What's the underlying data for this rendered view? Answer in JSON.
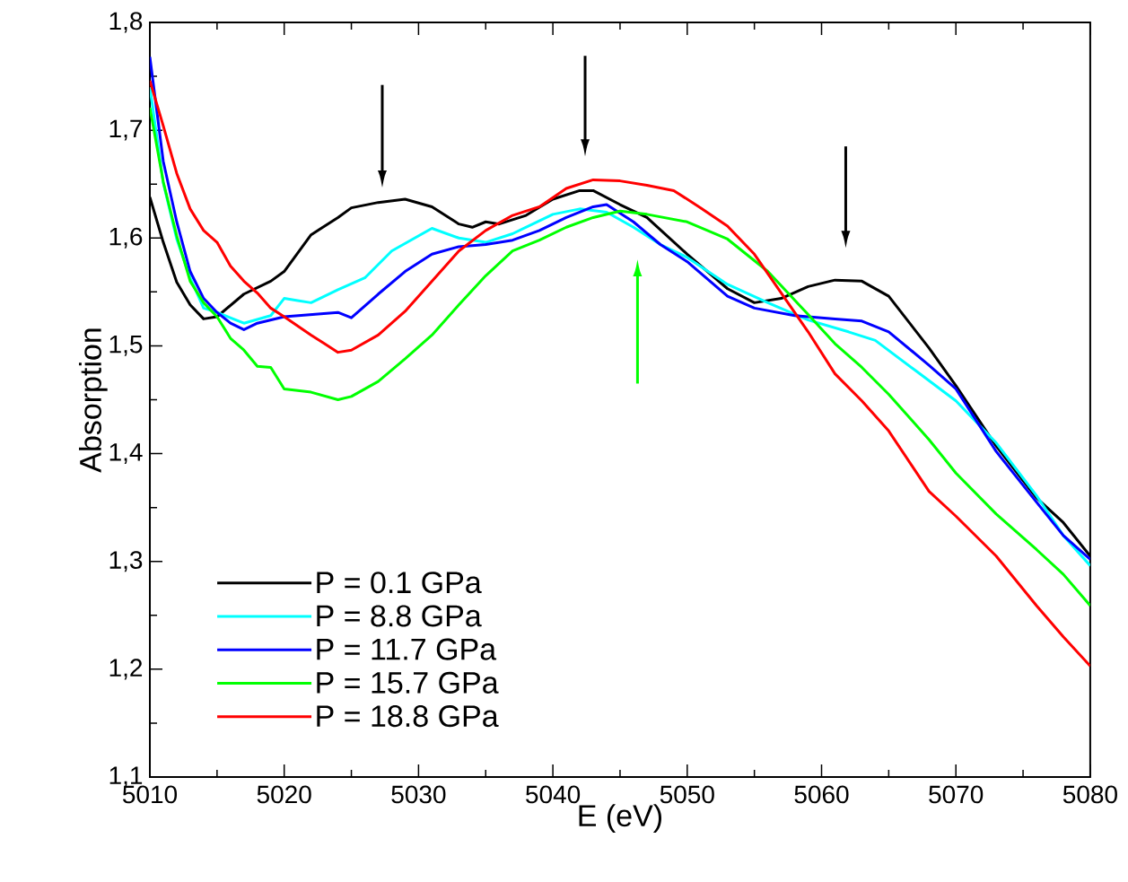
{
  "chart_data": {
    "type": "line",
    "xlabel": "E (eV)",
    "ylabel": "Absorption",
    "xlim": [
      5010,
      5080
    ],
    "xticks": [
      5010,
      5020,
      5030,
      5040,
      5050,
      5060,
      5070,
      5080
    ],
    "ylim": [
      1.1,
      1.8
    ],
    "yticks": [
      {
        "value": 1.1,
        "label": "1,1"
      },
      {
        "value": 1.2,
        "label": "1,2"
      },
      {
        "value": 1.3,
        "label": "1,3"
      },
      {
        "value": 1.4,
        "label": "1,4"
      },
      {
        "value": 1.5,
        "label": "1,5"
      },
      {
        "value": 1.6,
        "label": "1,6"
      },
      {
        "value": 1.7,
        "label": "1,7"
      },
      {
        "value": 1.8,
        "label": "1,8"
      }
    ],
    "grid": false,
    "legend": "bottom left",
    "marker": "none",
    "line_style": "solid",
    "series": [
      {
        "name": "P = 0.1 GPa",
        "color": "#000000",
        "x": [
          5010,
          5011,
          5012,
          5013,
          5014,
          5015,
          5017,
          5019,
          5020,
          5022,
          5024,
          5025,
          5027,
          5029,
          5031,
          5033,
          5034,
          5035,
          5036,
          5038,
          5040,
          5042,
          5043,
          5045,
          5047,
          5050,
          5053,
          5055,
          5057,
          5059,
          5061,
          5063,
          5065,
          5068,
          5070,
          5073,
          5076,
          5078,
          5080
        ],
        "values": [
          1.638,
          1.596,
          1.559,
          1.538,
          1.525,
          1.527,
          1.548,
          1.56,
          1.569,
          1.603,
          1.619,
          1.628,
          1.633,
          1.636,
          1.629,
          1.613,
          1.61,
          1.615,
          1.613,
          1.621,
          1.636,
          1.644,
          1.644,
          1.631,
          1.619,
          1.585,
          1.553,
          1.54,
          1.544,
          1.555,
          1.561,
          1.56,
          1.546,
          1.498,
          1.463,
          1.407,
          1.359,
          1.336,
          1.305
        ]
      },
      {
        "name": "P = 8.8 GPa",
        "color": "#00ffff",
        "x": [
          5010,
          5011,
          5012,
          5013,
          5014,
          5015,
          5017,
          5019,
          5020,
          5021,
          5022,
          5024,
          5026,
          5028,
          5031,
          5033,
          5035,
          5037,
          5040,
          5042,
          5044,
          5046,
          5048,
          5050,
          5053,
          5056,
          5059,
          5062,
          5064,
          5067,
          5070,
          5073,
          5076,
          5078,
          5080
        ],
        "values": [
          1.74,
          1.651,
          1.599,
          1.563,
          1.535,
          1.531,
          1.521,
          1.528,
          1.544,
          1.542,
          1.54,
          1.552,
          1.563,
          1.588,
          1.609,
          1.6,
          1.596,
          1.604,
          1.622,
          1.627,
          1.624,
          1.61,
          1.594,
          1.582,
          1.557,
          1.54,
          1.524,
          1.513,
          1.505,
          1.477,
          1.449,
          1.41,
          1.361,
          1.324,
          1.296
        ]
      },
      {
        "name": "P = 11.7 GPa",
        "color": "#0000ff",
        "x": [
          5010,
          5011,
          5012,
          5013,
          5014,
          5015,
          5016,
          5017,
          5018,
          5020,
          5022,
          5024,
          5025,
          5027,
          5029,
          5031,
          5033,
          5035,
          5037,
          5039,
          5041,
          5043,
          5044,
          5046,
          5048,
          5050,
          5053,
          5055,
          5058,
          5061,
          5063,
          5065,
          5068,
          5070,
          5073,
          5076,
          5078,
          5080
        ],
        "values": [
          1.768,
          1.671,
          1.615,
          1.569,
          1.544,
          1.531,
          1.521,
          1.515,
          1.521,
          1.527,
          1.529,
          1.531,
          1.526,
          1.548,
          1.569,
          1.585,
          1.592,
          1.594,
          1.598,
          1.607,
          1.619,
          1.629,
          1.631,
          1.615,
          1.594,
          1.578,
          1.546,
          1.535,
          1.528,
          1.525,
          1.523,
          1.513,
          1.482,
          1.46,
          1.402,
          1.355,
          1.324,
          1.302
        ]
      },
      {
        "name": "P = 15.7 GPa",
        "color": "#00ff00",
        "x": [
          5010,
          5011,
          5012,
          5013,
          5014,
          5015,
          5016,
          5017,
          5018,
          5019,
          5020,
          5022,
          5024,
          5025,
          5027,
          5029,
          5031,
          5033,
          5035,
          5037,
          5039,
          5041,
          5043,
          5045,
          5047,
          5050,
          5053,
          5056,
          5059,
          5061,
          5063,
          5065,
          5068,
          5070,
          5073,
          5076,
          5078,
          5080
        ],
        "values": [
          1.721,
          1.652,
          1.602,
          1.56,
          1.54,
          1.527,
          1.507,
          1.496,
          1.481,
          1.48,
          1.46,
          1.457,
          1.45,
          1.453,
          1.467,
          1.488,
          1.51,
          1.538,
          1.565,
          1.588,
          1.598,
          1.61,
          1.619,
          1.625,
          1.622,
          1.615,
          1.599,
          1.569,
          1.529,
          1.502,
          1.48,
          1.455,
          1.413,
          1.382,
          1.344,
          1.311,
          1.288,
          1.259
        ]
      },
      {
        "name": "P = 18.8 GPa",
        "color": "#ff0000",
        "x": [
          5010,
          5011,
          5012,
          5013,
          5014,
          5015,
          5016,
          5017,
          5018,
          5019,
          5020,
          5022,
          5023,
          5024,
          5025,
          5027,
          5029,
          5031,
          5033,
          5035,
          5037,
          5039,
          5041,
          5043,
          5045,
          5047,
          5049,
          5051,
          5053,
          5055,
          5057,
          5059,
          5061,
          5063,
          5065,
          5068,
          5070,
          5073,
          5076,
          5078,
          5080
        ],
        "values": [
          1.746,
          1.704,
          1.66,
          1.627,
          1.607,
          1.596,
          1.574,
          1.56,
          1.549,
          1.535,
          1.527,
          1.51,
          1.502,
          1.494,
          1.496,
          1.51,
          1.532,
          1.56,
          1.588,
          1.607,
          1.621,
          1.629,
          1.646,
          1.654,
          1.653,
          1.649,
          1.644,
          1.628,
          1.611,
          1.585,
          1.549,
          1.513,
          1.474,
          1.449,
          1.421,
          1.365,
          1.342,
          1.305,
          1.259,
          1.23,
          1.203
        ]
      }
    ]
  }
}
